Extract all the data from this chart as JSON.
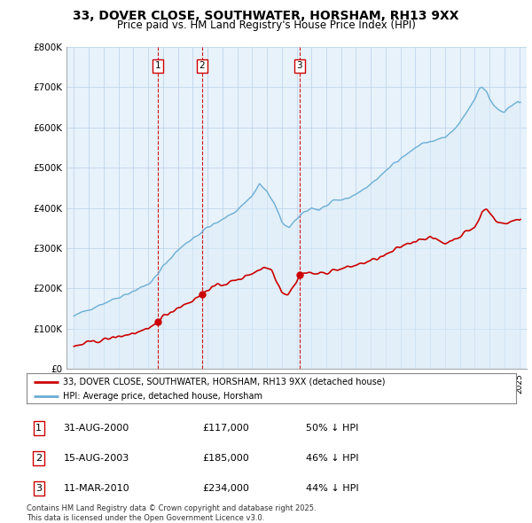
{
  "title": "33, DOVER CLOSE, SOUTHWATER, HORSHAM, RH13 9XX",
  "subtitle": "Price paid vs. HM Land Registry's House Price Index (HPI)",
  "legend_line1": "33, DOVER CLOSE, SOUTHWATER, HORSHAM, RH13 9XX (detached house)",
  "legend_line2": "HPI: Average price, detached house, Horsham",
  "footnote": "Contains HM Land Registry data © Crown copyright and database right 2025.\nThis data is licensed under the Open Government Licence v3.0.",
  "transactions": [
    {
      "num": 1,
      "date": "31-AUG-2000",
      "price": 117000,
      "pct": "50% ↓ HPI",
      "x": 2000.66
    },
    {
      "num": 2,
      "date": "15-AUG-2003",
      "price": 185000,
      "pct": "46% ↓ HPI",
      "x": 2003.62
    },
    {
      "num": 3,
      "date": "11-MAR-2010",
      "price": 234000,
      "pct": "44% ↓ HPI",
      "x": 2010.19
    }
  ],
  "hpi_color": "#6baed6",
  "hpi_fill_color": "#ddeeff",
  "price_color": "#cc0000",
  "vline_color": "#cc0000",
  "background_color": "#ffffff",
  "grid_color": "#cccccc",
  "ylim": [
    0,
    800000
  ],
  "yticks": [
    0,
    100000,
    200000,
    300000,
    400000,
    500000,
    600000,
    700000,
    800000
  ],
  "xlim": [
    1994.5,
    2025.5
  ],
  "title_fontsize": 10,
  "subtitle_fontsize": 9
}
